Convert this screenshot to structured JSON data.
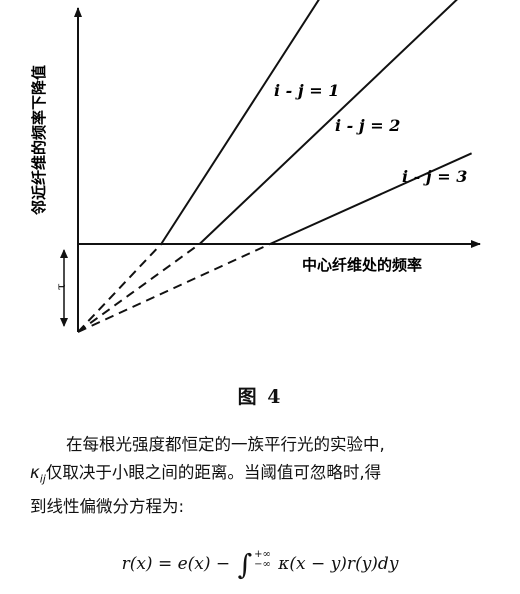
{
  "chart_data": {
    "type": "line",
    "ylabel": "邻近纤维的频率下降值",
    "xlabel": "中心纤维处的频率",
    "threshold_label": "τ",
    "series": [
      {
        "name": "i-j=1",
        "label": "i - j = 1",
        "x_intercept": 1.3,
        "slope": 1.55
      },
      {
        "name": "i-j=2",
        "label": "i - j = 2",
        "x_intercept": 1.9,
        "slope": 0.95
      },
      {
        "name": "i-j=3",
        "label": "i - j = 3",
        "x_intercept": 3.0,
        "slope": 0.45
      }
    ]
  },
  "figure": {
    "caption": "图 4"
  },
  "text": {
    "line1": "在每根光强度都恒定的一族平行光的实验中,",
    "line2": "κ仅取决于小眼之间的距离。当阈值可忽略时,得",
    "line2_sub": "ij",
    "line2_rest": "仅取决于小眼之间的距离。当阈值可忽略时,得",
    "line3": "到线性偏微分方程为:"
  },
  "equation": {
    "lhs": "r(x) = e(x) −",
    "upper": "+∞",
    "lower": "−∞",
    "rhs": "κ(x − y)r(y)dy"
  }
}
